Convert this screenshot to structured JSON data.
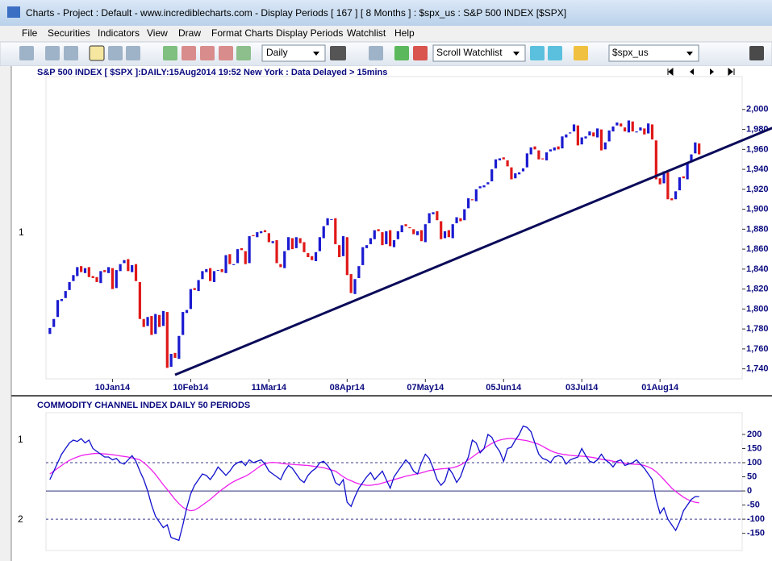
{
  "window": {
    "title_bar": "Charts - Project : Default - www.incrediblecharts.com - Display Periods  [ 167 ]  [ 8 Months ] : $spx_us : S&P 500 INDEX  [$SPX]",
    "menu": [
      "File",
      "Securities",
      "Indicators",
      "View",
      "Draw",
      "Format Charts",
      "Display Periods",
      "Watchlist",
      "Help"
    ],
    "toolbar": {
      "period": "Daily",
      "watchlist": "Scroll Watchlist",
      "symbol": "$spx_us"
    },
    "pane_labels": [
      "1",
      "1",
      "2"
    ]
  },
  "chart_data": [
    {
      "type": "candlestick",
      "title": "S&P 500 INDEX [ $SPX ]:DAILY:15Aug2014 19:52 New York : Data Delayed > 15mins",
      "up_color": "#1a1ad0",
      "down_color": "#e01818",
      "open": [
        1775,
        1782,
        1792,
        1808,
        1811,
        1819,
        1828,
        1833,
        1843,
        1836,
        1842,
        1833,
        1832,
        1826,
        1839,
        1836,
        1841,
        1821,
        1838,
        1846,
        1850,
        1837,
        1845,
        1827,
        1790,
        1783,
        1793,
        1775,
        1794,
        1783,
        1797,
        1742,
        1756,
        1750,
        1774,
        1796,
        1800,
        1821,
        1818,
        1830,
        1837,
        1841,
        1827,
        1839,
        1840,
        1836,
        1855,
        1844,
        1846,
        1861,
        1858,
        1846,
        1874,
        1872,
        1876,
        1879,
        1876,
        1866,
        1869,
        1845,
        1841,
        1859,
        1871,
        1861,
        1871,
        1867,
        1856,
        1853,
        1848,
        1858,
        1871,
        1884,
        1890,
        1891,
        1864,
        1853,
        1872,
        1835,
        1815,
        1831,
        1844,
        1861,
        1865,
        1870,
        1880,
        1877,
        1865,
        1879,
        1862,
        1870,
        1877,
        1885,
        1882,
        1880,
        1874,
        1879,
        1867,
        1886,
        1895,
        1898,
        1888,
        1871,
        1879,
        1871,
        1886,
        1891,
        1889,
        1901,
        1910,
        1908,
        1921,
        1922,
        1925,
        1928,
        1941,
        1949,
        1952,
        1949,
        1942,
        1931,
        1935,
        1938,
        1942,
        1955,
        1963,
        1959,
        1951,
        1949,
        1958,
        1959,
        1963,
        1961,
        1972,
        1976,
        1978,
        1984,
        1965,
        1971,
        1974,
        1977,
        1972,
        1980,
        1960,
        1968,
        1978,
        1984,
        1986,
        1982,
        1977,
        1988,
        1977,
        1979,
        1981,
        1976,
        1985,
        1969,
        1931,
        1926,
        1937,
        1911,
        1910,
        1919,
        1933,
        1930,
        1947,
        1956,
        1966
      ],
      "close": [
        1781,
        1790,
        1809,
        1810,
        1818,
        1827,
        1834,
        1842,
        1837,
        1841,
        1832,
        1831,
        1827,
        1838,
        1837,
        1842,
        1820,
        1839,
        1845,
        1849,
        1838,
        1844,
        1828,
        1790,
        1782,
        1792,
        1774,
        1795,
        1782,
        1798,
        1741,
        1755,
        1751,
        1773,
        1797,
        1799,
        1820,
        1819,
        1829,
        1838,
        1840,
        1828,
        1838,
        1839,
        1837,
        1854,
        1845,
        1845,
        1860,
        1859,
        1845,
        1873,
        1873,
        1877,
        1878,
        1877,
        1867,
        1868,
        1846,
        1842,
        1858,
        1872,
        1860,
        1872,
        1866,
        1857,
        1852,
        1849,
        1857,
        1872,
        1883,
        1891,
        1890,
        1865,
        1852,
        1873,
        1834,
        1816,
        1830,
        1843,
        1862,
        1864,
        1871,
        1879,
        1878,
        1864,
        1878,
        1863,
        1869,
        1878,
        1884,
        1883,
        1881,
        1875,
        1878,
        1868,
        1885,
        1896,
        1897,
        1889,
        1870,
        1878,
        1872,
        1885,
        1892,
        1888,
        1900,
        1911,
        1909,
        1920,
        1923,
        1924,
        1927,
        1940,
        1950,
        1951,
        1950,
        1943,
        1930,
        1936,
        1937,
        1941,
        1956,
        1962,
        1960,
        1950,
        1950,
        1957,
        1960,
        1962,
        1960,
        1973,
        1975,
        1977,
        1985,
        1964,
        1972,
        1973,
        1978,
        1973,
        1981,
        1959,
        1967,
        1979,
        1983,
        1987,
        1983,
        1978,
        1989,
        1978,
        1978,
        1982,
        1975,
        1986,
        1970,
        1930,
        1925,
        1938,
        1910,
        1909,
        1918,
        1932,
        1931,
        1946,
        1955,
        1967,
        1955
      ],
      "xlim": [
        -1,
        177
      ],
      "xticks": [
        {
          "value": 16,
          "label": "10Jan14"
        },
        {
          "value": 36,
          "label": "10Feb14"
        },
        {
          "value": 56,
          "label": "11Mar14"
        },
        {
          "value": 76,
          "label": "08Apr14"
        },
        {
          "value": 96,
          "label": "07May14"
        },
        {
          "value": 116,
          "label": "05Jun14"
        },
        {
          "value": 136,
          "label": "03Jul14"
        },
        {
          "value": 156,
          "label": "01Aug14"
        }
      ],
      "ylim": [
        1730,
        2033
      ],
      "yticks": [
        {
          "value": 1740,
          "label": "1,740"
        },
        {
          "value": 1760,
          "label": "1,760"
        },
        {
          "value": 1780,
          "label": "1,780"
        },
        {
          "value": 1800,
          "label": "1,800"
        },
        {
          "value": 1820,
          "label": "1,820"
        },
        {
          "value": 1840,
          "label": "1,840"
        },
        {
          "value": 1860,
          "label": "1,860"
        },
        {
          "value": 1880,
          "label": "1,880"
        },
        {
          "value": 1900,
          "label": "1,900"
        },
        {
          "value": 1920,
          "label": "1,920"
        },
        {
          "value": 1940,
          "label": "1,940"
        },
        {
          "value": 1960,
          "label": "1,960"
        },
        {
          "value": 1980,
          "label": "1,980"
        },
        {
          "value": 2000,
          "label": "2,000"
        }
      ],
      "trendline": {
        "x": [
          32,
          185
        ],
        "y": [
          1734,
          1982
        ],
        "color": "#0a0a5a"
      }
    },
    {
      "type": "line",
      "title": "COMMODITY CHANNEL INDEX DAILY 50 PERIODS",
      "xlim": [
        -1,
        177
      ],
      "ylim": [
        -211,
        277
      ],
      "yticks": [
        -150,
        -100,
        -50,
        0,
        50,
        100,
        150,
        200
      ],
      "dashed_lines": [
        -100,
        100
      ],
      "zero_line": 0,
      "series": [
        {
          "color": "#1010cc",
          "values": [
            40,
            70,
            100,
            130,
            150,
            170,
            180,
            175,
            185,
            170,
            180,
            150,
            140,
            130,
            120,
            120,
            110,
            115,
            100,
            95,
            110,
            125,
            105,
            70,
            40,
            0,
            -50,
            -90,
            -110,
            -130,
            -120,
            -165,
            -170,
            -175,
            -120,
            -60,
            -10,
            20,
            40,
            60,
            55,
            40,
            60,
            85,
            70,
            55,
            70,
            90,
            100,
            105,
            90,
            110,
            100,
            105,
            110,
            95,
            70,
            60,
            50,
            40,
            70,
            90,
            80,
            60,
            40,
            30,
            55,
            70,
            80,
            100,
            105,
            90,
            70,
            30,
            20,
            40,
            -40,
            -55,
            -20,
            10,
            30,
            50,
            65,
            40,
            55,
            70,
            40,
            10,
            50,
            70,
            90,
            110,
            95,
            70,
            60,
            100,
            130,
            115,
            80,
            40,
            20,
            35,
            80,
            60,
            30,
            50,
            90,
            120,
            180,
            170,
            135,
            150,
            200,
            190,
            160,
            140,
            105,
            150,
            155,
            180,
            200,
            230,
            225,
            210,
            170,
            130,
            115,
            110,
            100,
            120,
            125,
            120,
            95,
            110,
            115,
            120,
            150,
            125,
            105,
            100,
            110,
            130,
            110,
            100,
            85,
            105,
            110,
            90,
            95,
            100,
            110,
            95,
            80,
            60,
            40,
            -30,
            -80,
            -60,
            -100,
            -120,
            -140,
            -110,
            -70,
            -50,
            -30,
            -20,
            -20
          ]
        },
        {
          "color": "#ee22ee",
          "values": [
            60,
            70,
            80,
            90,
            100,
            108,
            115,
            120,
            125,
            128,
            130,
            132,
            133,
            132,
            131,
            130,
            128,
            126,
            124,
            122,
            120,
            117,
            114,
            110,
            100,
            88,
            74,
            58,
            40,
            22,
            5,
            -12,
            -30,
            -45,
            -58,
            -66,
            -70,
            -68,
            -60,
            -50,
            -40,
            -30,
            -18,
            -6,
            5,
            15,
            25,
            33,
            40,
            46,
            52,
            60,
            70,
            80,
            90,
            96,
            100,
            101,
            100,
            98,
            96,
            95,
            94,
            93,
            92,
            91,
            90,
            88,
            86,
            84,
            82,
            78,
            74,
            70,
            60,
            50,
            42,
            36,
            30,
            25,
            22,
            20,
            20,
            22,
            24,
            28,
            32,
            36,
            40,
            44,
            48,
            52,
            55,
            58,
            61,
            64,
            68,
            72,
            74,
            76,
            78,
            79,
            80,
            82,
            86,
            92,
            100,
            110,
            120,
            130,
            140,
            150,
            160,
            168,
            175,
            180,
            183,
            185,
            186,
            184,
            182,
            180,
            178,
            174,
            170,
            165,
            158,
            150,
            143,
            137,
            133,
            130,
            128,
            126,
            125,
            124,
            123,
            122,
            120,
            118,
            115,
            112,
            110,
            108,
            105,
            103,
            100,
            98,
            96,
            95,
            94,
            93,
            90,
            85,
            78,
            68,
            55,
            40,
            25,
            10,
            -2,
            -12,
            -22,
            -30,
            -36,
            -40,
            -42
          ]
        }
      ]
    }
  ]
}
